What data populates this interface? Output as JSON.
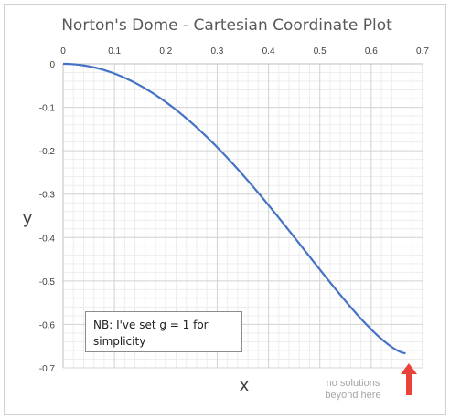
{
  "chart_data": {
    "type": "line",
    "title": "Norton's Dome - Cartesian Coordinate Plot",
    "xlabel": "x",
    "ylabel": "y",
    "xlim": [
      0,
      0.7
    ],
    "ylim": [
      -0.7,
      0
    ],
    "x_axis_position": "top",
    "grid": true,
    "legend": "none",
    "x_ticks": [
      "0",
      "0.1",
      "0.2",
      "0.3",
      "0.4",
      "0.5",
      "0.6",
      "0.7"
    ],
    "y_ticks": [
      "0",
      "-0.1",
      "-0.2",
      "-0.3",
      "-0.4",
      "-0.5",
      "-0.6",
      "-0.7"
    ],
    "series": [
      {
        "color": "#4472c4",
        "x": [
          0,
          0.05,
          0.1,
          0.15,
          0.2,
          0.25,
          0.3,
          0.35,
          0.4,
          0.45,
          0.5,
          0.55,
          0.6,
          0.625,
          0.645,
          0.66,
          0.667
        ],
        "y": [
          0,
          -0.0038,
          -0.0151,
          -0.0346,
          -0.0625,
          -0.0995,
          -0.1465,
          -0.2049,
          -0.2764,
          -0.3636,
          -0.4709,
          -0.6065,
          -0.6,
          -0.6,
          -0.6,
          -0.6,
          -0.6
        ]
      }
    ],
    "annotations": [
      {
        "text": "NB: I've set g = 1 for simplicity"
      },
      {
        "text": "no solutions beyond here"
      }
    ],
    "arrow_color": "#e8423a"
  },
  "note": {
    "line1": "NB: I've set g = 1 for",
    "line2": "simplicity"
  },
  "annotation": {
    "line1": "no solutions",
    "line2": "beyond here"
  }
}
